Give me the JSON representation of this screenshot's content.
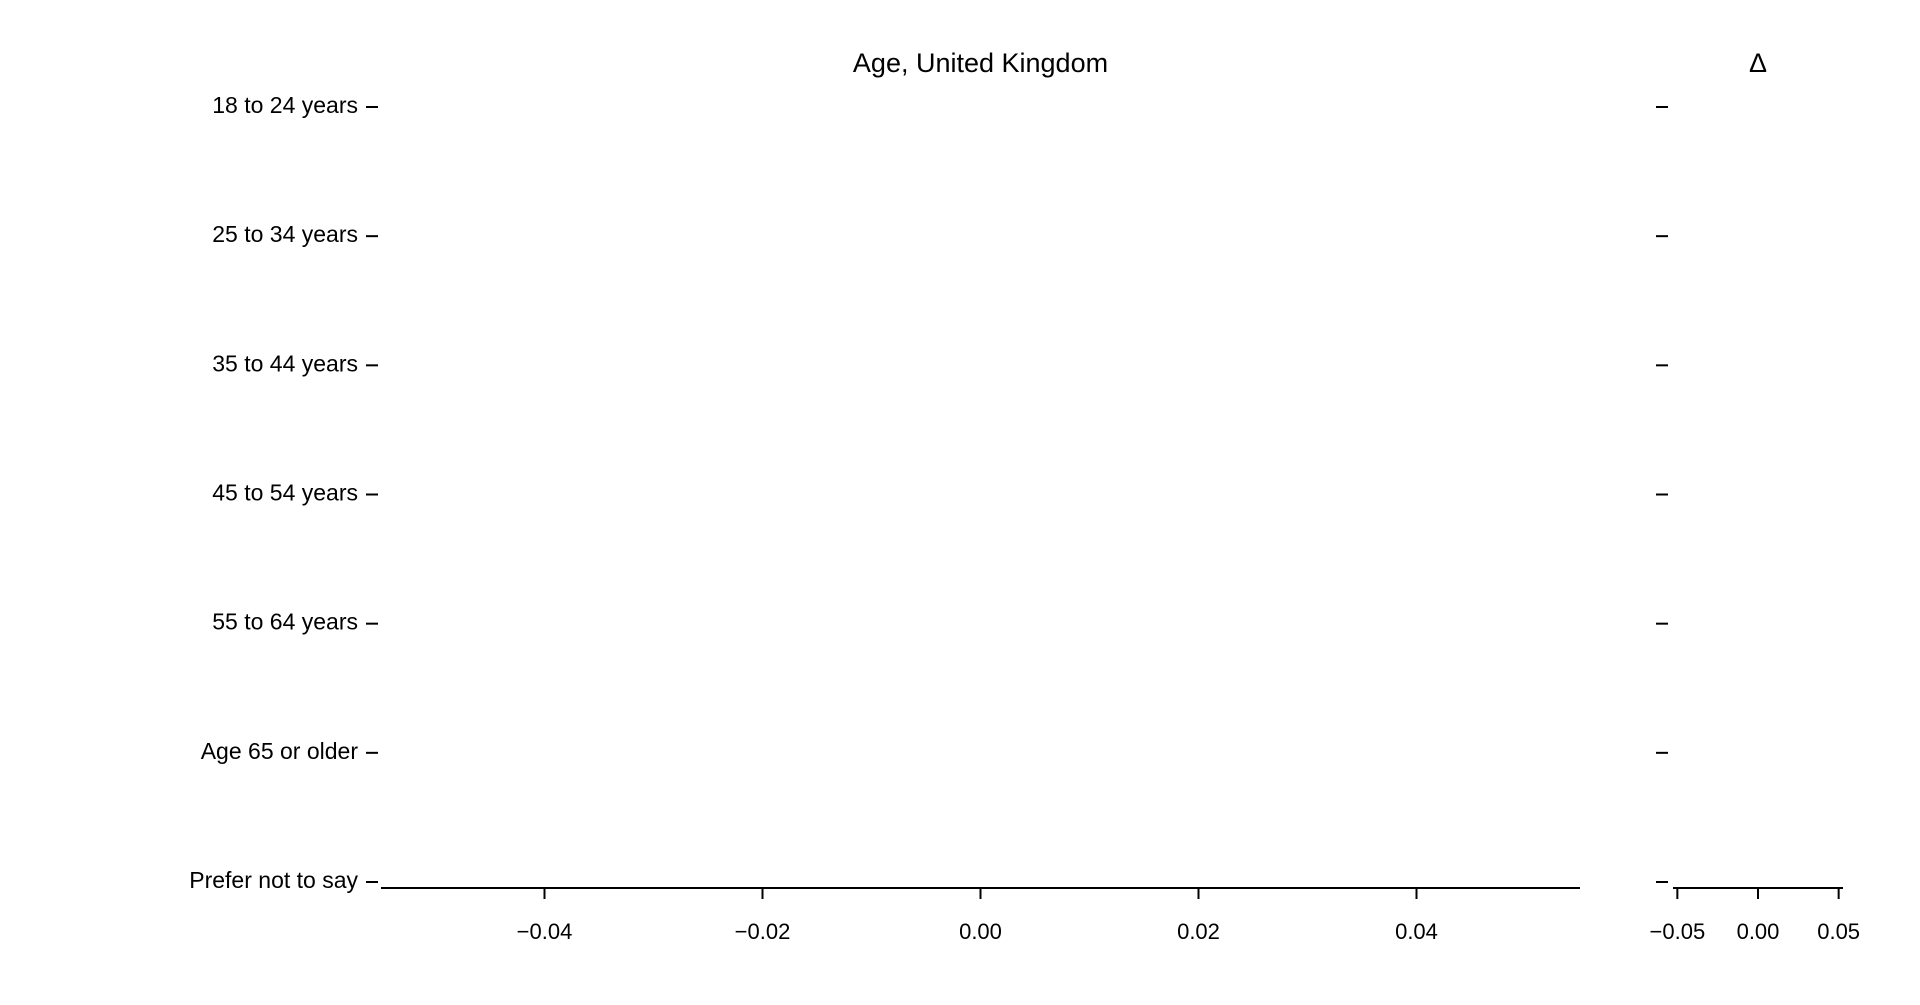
{
  "chart_data": [
    {
      "type": "barh",
      "title": "Age, United Kingdom",
      "categories": [
        "18 to 24 years",
        "25 to 34 years",
        "35 to 44 years",
        "45 to 54 years",
        "55 to 64 years",
        "Age 65 or older",
        "Prefer not to say"
      ],
      "xlim": [
        -0.055,
        0.055
      ],
      "xticks": [
        {
          "value": -0.04,
          "label": "−0.04"
        },
        {
          "value": -0.02,
          "label": "−0.02"
        },
        {
          "value": 0,
          "label": "0.00"
        },
        {
          "value": 0.02,
          "label": "0.02"
        },
        {
          "value": 0.04,
          "label": "0.04"
        }
      ]
    },
    {
      "type": "barh",
      "title": "Δ",
      "xlim": [
        -0.0527,
        0.0527
      ],
      "xticks": [
        {
          "value": -0.05,
          "label": "−0.05"
        },
        {
          "value": 0,
          "label": "0.00"
        },
        {
          "value": 0.05,
          "label": "0.05"
        }
      ]
    }
  ]
}
